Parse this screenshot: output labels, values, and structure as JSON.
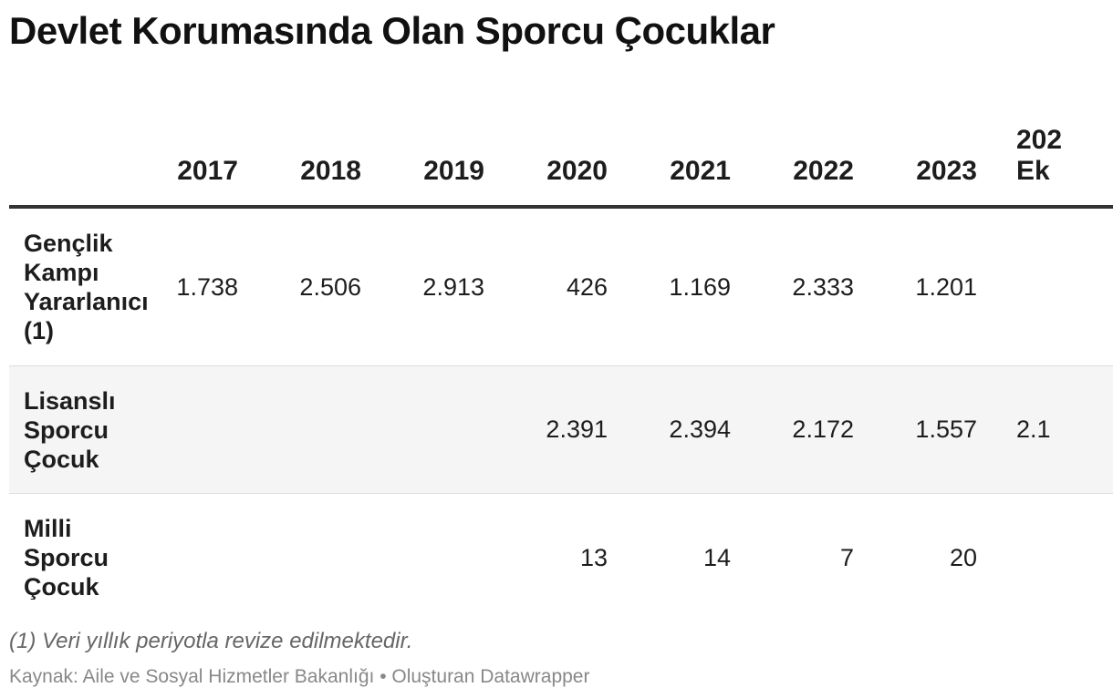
{
  "chart_data": {
    "type": "table",
    "title": "Devlet Korumasında Olan Sporcu Çocuklar",
    "columns": [
      "",
      "2017",
      "2018",
      "2019",
      "2020",
      "2021",
      "2022",
      "2023",
      "202… Ek…"
    ],
    "rows": [
      {
        "label": "Gençlik Kampı Yararlanıcı (1)",
        "values": [
          "1.738",
          "2.506",
          "2.913",
          "426",
          "1.169",
          "2.333",
          "1.201",
          ""
        ]
      },
      {
        "label": "Lisanslı Sporcu Çocuk",
        "values": [
          "",
          "",
          "",
          "2.391",
          "2.394",
          "2.172",
          "1.557",
          "2.1…"
        ]
      },
      {
        "label": "Milli Sporcu Çocuk",
        "values": [
          "",
          "",
          "",
          "13",
          "14",
          "7",
          "20",
          ""
        ]
      }
    ],
    "note": "(1) Veri yıllık periyotla revize edilmektedir.",
    "source": "Kaynak: Aile ve Sosyal Hizmetler Bakanlığı • Oluşturan Datawrapper"
  },
  "table": {
    "title": "Devlet Korumasında Olan Sporcu Çocuklar",
    "headers": [
      "",
      "2017",
      "2018",
      "2019",
      "2020",
      "2021",
      "2022",
      "2023"
    ],
    "last_header_line1": "202",
    "last_header_line2": "Ek",
    "rows": [
      {
        "label": "Gençlik Kampı Yararlanıcı (1)",
        "values": [
          "1.738",
          "2.506",
          "2.913",
          "426",
          "1.169",
          "2.333",
          "1.201",
          ""
        ]
      },
      {
        "label": "Lisanslı Sporcu Çocuk",
        "values": [
          "",
          "",
          "",
          "2.391",
          "2.394",
          "2.172",
          "1.557",
          "2.1"
        ]
      },
      {
        "label": "Milli Sporcu Çocuk",
        "values": [
          "",
          "",
          "",
          "13",
          "14",
          "7",
          "20",
          ""
        ]
      }
    ]
  }
}
